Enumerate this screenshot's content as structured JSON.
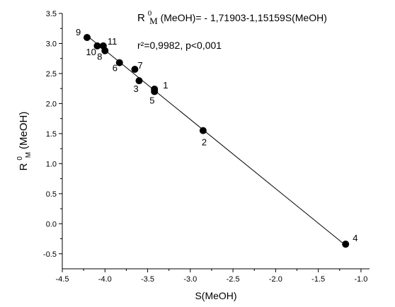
{
  "chart_data": {
    "type": "scatter",
    "xlabel": "S(MeOH)",
    "ylabel": {
      "base": "R",
      "superscript": "0",
      "subscript": "M",
      "rest": "(MeOH)"
    },
    "xlim": [
      -4.5,
      -0.9
    ],
    "ylim": [
      -0.75,
      3.5
    ],
    "xticks": [
      -4.5,
      -4.0,
      -3.5,
      -3.0,
      -2.5,
      -2.0,
      -1.5,
      -1.0
    ],
    "yticks": [
      -0.5,
      0.0,
      0.5,
      1.0,
      1.5,
      2.0,
      2.5,
      3.0,
      3.5
    ],
    "xtick_labels": [
      "-4.5",
      "-4.0",
      "-3.5",
      "-3.0",
      "-2.5",
      "-2.0",
      "-1.5",
      "-1.0"
    ],
    "ytick_labels": [
      "-0.5",
      "0.0",
      "0.5",
      "1.0",
      "1.5",
      "2.0",
      "2.5",
      "3.0",
      "3.5"
    ],
    "points": [
      {
        "label": "1",
        "x": -3.42,
        "y": 2.24
      },
      {
        "label": "2",
        "x": -2.85,
        "y": 1.55
      },
      {
        "label": "3",
        "x": -3.6,
        "y": 2.38
      },
      {
        "label": "4",
        "x": -1.18,
        "y": -0.34
      },
      {
        "label": "5",
        "x": -3.42,
        "y": 2.2
      },
      {
        "label": "6",
        "x": -3.83,
        "y": 2.68
      },
      {
        "label": "7",
        "x": -3.65,
        "y": 2.57
      },
      {
        "label": "8",
        "x": -4.0,
        "y": 2.88
      },
      {
        "label": "9",
        "x": -4.21,
        "y": 3.1
      },
      {
        "label": "10",
        "x": -4.09,
        "y": 2.96
      },
      {
        "label": "11",
        "x": -4.02,
        "y": 2.96
      }
    ],
    "fit_line": {
      "intercept": -1.71903,
      "slope": -1.15159,
      "x_range": [
        -4.21,
        -1.18
      ]
    },
    "annotation": {
      "lhs_base": "R",
      "lhs_sup": "0",
      "lhs_sub": "M",
      "lhs_rest": "(MeOH)= - 1,71903-1,15159S(MeOH)",
      "stats": "r²=0,9982, p<0,001"
    },
    "grid": false,
    "colors": {
      "marker": "#000000",
      "line": "#000000",
      "axis": "#000000"
    }
  }
}
